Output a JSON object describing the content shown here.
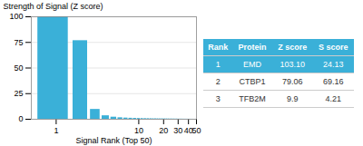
{
  "chart_data": {
    "type": "bar",
    "xlabel": "Signal Rank (Top 50)",
    "ylabel": "Strength of Signal (Z score)",
    "x": [
      1,
      2,
      3,
      4,
      5,
      6,
      7,
      8,
      9,
      10,
      11,
      12,
      13,
      14,
      15,
      16,
      17,
      18,
      19,
      20,
      21,
      22,
      23,
      24,
      25,
      26,
      27,
      28,
      29,
      30,
      31,
      32,
      33,
      34,
      35,
      36,
      37,
      38,
      39,
      40,
      41,
      42,
      43,
      44,
      45,
      46,
      47,
      48,
      49,
      50
    ],
    "values": [
      100,
      76.682832,
      9.602328,
      3.394762,
      2.036857,
      1.454898,
      1.163919,
      0.969932,
      0.872939,
      0.775946,
      0.678952,
      0.630456,
      0.581959,
      0.533463,
      0.484966,
      0.465567,
      0.446169,
      0.42677,
      0.407371,
      0.387973,
      0.368574,
      0.349176,
      0.329777,
      0.310378,
      0.29098,
      0.271581,
      0.252182,
      0.232784,
      0.213385,
      0.193986,
      0.174588,
      0.164888,
      0.155189,
      0.14549,
      0.13579,
      0.126091,
      0.116392,
      0.106693,
      0.0969932,
      0.0872939,
      0.0775946,
      0.0678952,
      0.0581959,
      0.0484966,
      0.0484966,
      0.0387973,
      0.0387973,
      0.029098,
      0.029098,
      0.0193986
    ],
    "color": "#3ab0d8",
    "log": "x",
    "xlim": [
      0.5,
      50
    ],
    "xticks": [
      1,
      10,
      20,
      30,
      40,
      50
    ],
    "ylim": [
      0,
      100
    ],
    "yticks": [
      0,
      25,
      50,
      75,
      100
    ],
    "grid": true,
    "table": {
      "headers": [
        "Rank",
        "Protein",
        "Z score",
        "S score"
      ],
      "rows": [
        [
          "1",
          "EMD",
          "103.10",
          "24.13"
        ],
        [
          "2",
          "CTBP1",
          "79.06",
          "69.16"
        ],
        [
          "3",
          "TFB2M",
          "9.9",
          "4.21"
        ]
      ],
      "color": "#3ab0d8"
    }
  }
}
